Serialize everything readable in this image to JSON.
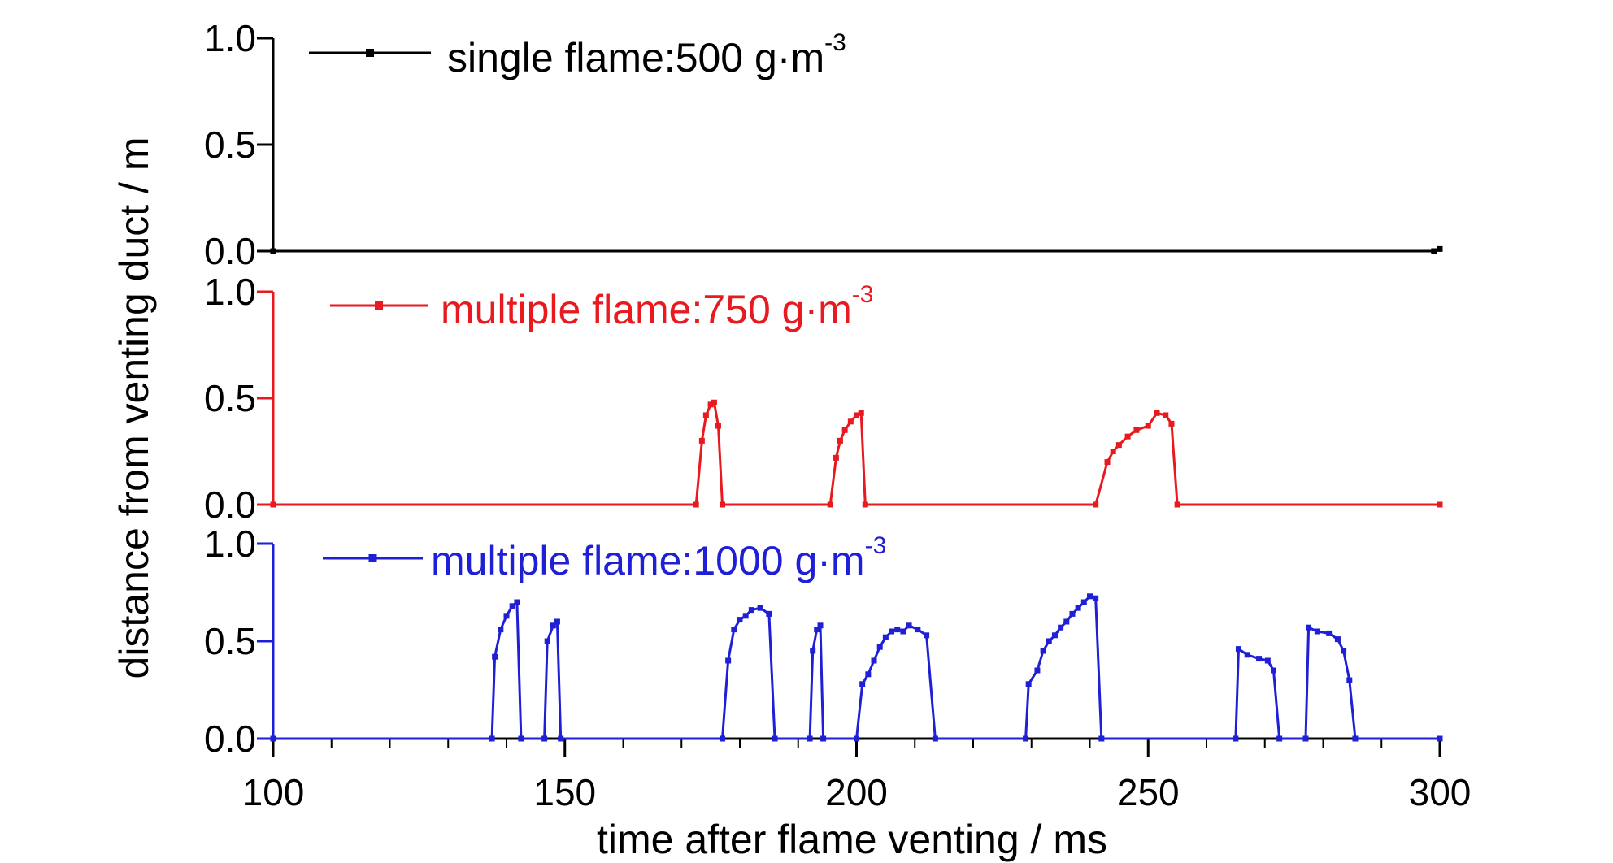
{
  "chart_data": {
    "type": "line",
    "xlabel": "time after flame venting / ms",
    "ylabel": "distance from venting duct / m",
    "xlim": [
      100,
      300
    ],
    "x_ticks": [
      "100",
      "150",
      "200",
      "250",
      "300"
    ],
    "ylim": [
      0,
      1.0
    ],
    "y_ticks": [
      "0.0",
      "0.5",
      "1.0"
    ],
    "grid": false,
    "legend_placement": "top-left",
    "series": [
      {
        "name": "single flame:500 g·m",
        "name_main": "single flame:500 g·m",
        "name_sup": "-3",
        "color": "#000000",
        "points": [
          [
            100,
            0
          ],
          [
            299,
            0
          ],
          [
            300,
            0.01
          ]
        ]
      },
      {
        "name": "multiple flame:750 g·m",
        "name_main": "multiple flame:750 g·m",
        "name_sup": "-3",
        "color": "#e8191f",
        "points": [
          [
            100,
            0
          ],
          [
            172.5,
            0
          ],
          [
            173.5,
            0.3
          ],
          [
            174.2,
            0.42
          ],
          [
            175,
            0.47
          ],
          [
            175.6,
            0.48
          ],
          [
            176.3,
            0.37
          ],
          [
            177,
            0
          ],
          [
            195.5,
            0
          ],
          [
            196.5,
            0.22
          ],
          [
            197.2,
            0.3
          ],
          [
            198,
            0.35
          ],
          [
            199,
            0.39
          ],
          [
            200,
            0.42
          ],
          [
            200.8,
            0.43
          ],
          [
            201.5,
            0
          ],
          [
            241,
            0
          ],
          [
            243,
            0.2
          ],
          [
            244,
            0.25
          ],
          [
            245,
            0.28
          ],
          [
            246.5,
            0.32
          ],
          [
            248,
            0.35
          ],
          [
            250,
            0.37
          ],
          [
            251.5,
            0.43
          ],
          [
            253,
            0.42
          ],
          [
            254,
            0.38
          ],
          [
            255,
            0
          ],
          [
            300,
            0
          ]
        ]
      },
      {
        "name": "multiple flame:1000 g·m",
        "name_main": "multiple flame:1000 g·m",
        "name_sup": "-3",
        "color": "#1f1fd6",
        "points": [
          [
            100,
            0
          ],
          [
            137.5,
            0
          ],
          [
            138,
            0.42
          ],
          [
            139,
            0.56
          ],
          [
            140,
            0.63
          ],
          [
            141,
            0.68
          ],
          [
            141.8,
            0.7
          ],
          [
            142.5,
            0
          ],
          [
            146.5,
            0
          ],
          [
            147,
            0.5
          ],
          [
            148,
            0.58
          ],
          [
            148.7,
            0.6
          ],
          [
            149.3,
            0
          ],
          [
            177,
            0
          ],
          [
            178,
            0.4
          ],
          [
            179,
            0.56
          ],
          [
            180,
            0.61
          ],
          [
            181,
            0.63
          ],
          [
            182,
            0.66
          ],
          [
            183.5,
            0.67
          ],
          [
            185,
            0.64
          ],
          [
            186,
            0
          ],
          [
            192,
            0
          ],
          [
            192.5,
            0.45
          ],
          [
            193.2,
            0.56
          ],
          [
            193.8,
            0.58
          ],
          [
            194.3,
            0
          ],
          [
            200,
            0
          ],
          [
            201,
            0.28
          ],
          [
            202,
            0.33
          ],
          [
            203,
            0.4
          ],
          [
            204,
            0.47
          ],
          [
            205,
            0.52
          ],
          [
            206,
            0.55
          ],
          [
            207,
            0.56
          ],
          [
            208,
            0.55
          ],
          [
            209,
            0.58
          ],
          [
            210.5,
            0.56
          ],
          [
            212,
            0.53
          ],
          [
            213.5,
            0
          ],
          [
            229,
            0
          ],
          [
            229.5,
            0.28
          ],
          [
            231,
            0.35
          ],
          [
            232,
            0.45
          ],
          [
            233,
            0.5
          ],
          [
            234,
            0.53
          ],
          [
            235,
            0.57
          ],
          [
            236,
            0.6
          ],
          [
            237,
            0.64
          ],
          [
            238,
            0.67
          ],
          [
            239,
            0.7
          ],
          [
            240,
            0.73
          ],
          [
            241,
            0.72
          ],
          [
            242,
            0
          ],
          [
            265,
            0
          ],
          [
            265.5,
            0.46
          ],
          [
            267,
            0.43
          ],
          [
            269,
            0.41
          ],
          [
            270.5,
            0.4
          ],
          [
            271.5,
            0.35
          ],
          [
            272.5,
            0
          ],
          [
            277,
            0
          ],
          [
            277.5,
            0.57
          ],
          [
            279,
            0.55
          ],
          [
            281,
            0.54
          ],
          [
            282.5,
            0.51
          ],
          [
            283.5,
            0.45
          ],
          [
            284.5,
            0.3
          ],
          [
            285.5,
            0
          ],
          [
            300,
            0
          ]
        ]
      }
    ]
  }
}
